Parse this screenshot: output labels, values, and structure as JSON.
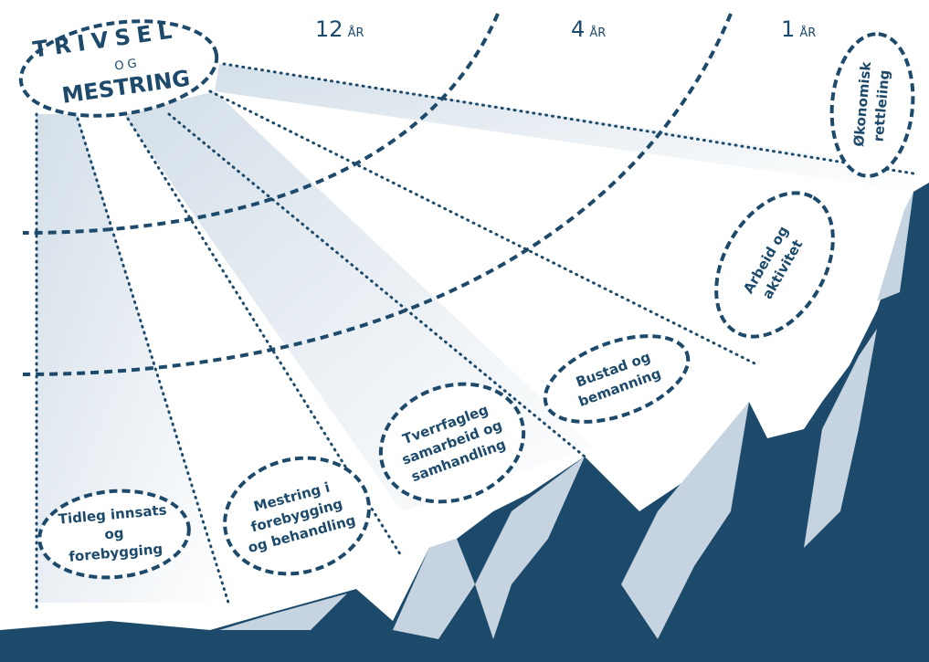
{
  "title": {
    "line1": "TRIVSEL",
    "line2": "OG",
    "line3": "MESTRING"
  },
  "horizons": [
    {
      "number": "12",
      "unit": "ÅR"
    },
    {
      "number": "4",
      "unit": "ÅR"
    },
    {
      "number": "1",
      "unit": "ÅR"
    }
  ],
  "bubbles": [
    {
      "lines": [
        "Tidleg innsats",
        "og",
        "forebygging"
      ]
    },
    {
      "lines": [
        "Mestring i",
        "forebygging",
        "og behandling"
      ]
    },
    {
      "lines": [
        "Tverrfagleg",
        "samarbeid og",
        "samhandling"
      ]
    },
    {
      "lines": [
        "Bustad og",
        "bemanning"
      ]
    },
    {
      "lines": [
        "Arbeid og",
        "aktivitet"
      ]
    },
    {
      "lines": [
        "Økonomisk",
        "rettleiing"
      ]
    }
  ]
}
